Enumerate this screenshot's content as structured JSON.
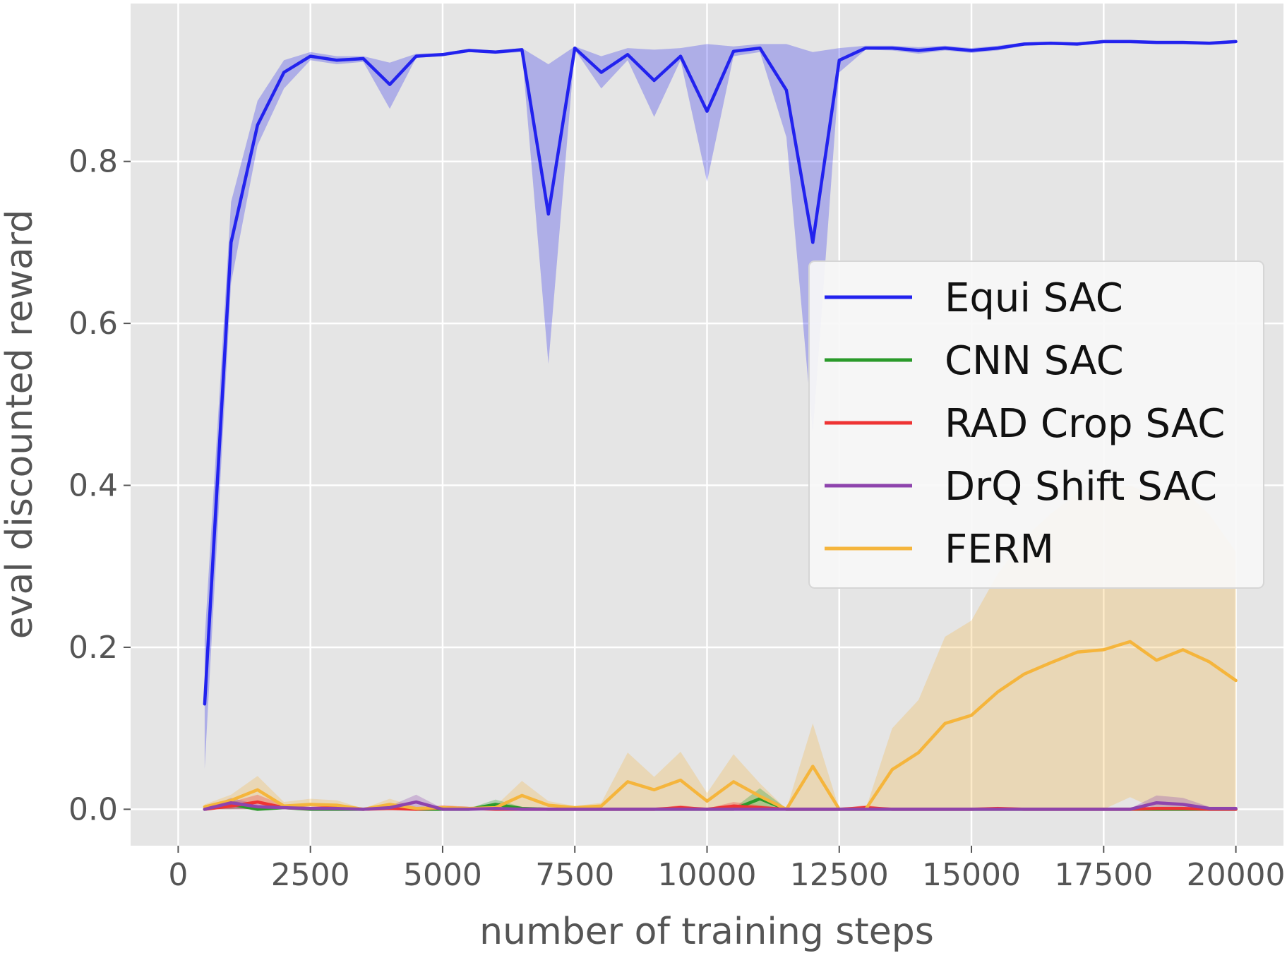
{
  "chart_data": {
    "type": "line",
    "title": "",
    "xlabel": "number of training steps",
    "ylabel": "eval discounted reward",
    "xlim": [
      -900,
      20900
    ],
    "ylim": [
      -0.045,
      0.995
    ],
    "xticks": [
      0,
      2500,
      5000,
      7500,
      10000,
      12500,
      15000,
      17500,
      20000
    ],
    "xtick_labels": [
      "0",
      "2500",
      "5000",
      "7500",
      "10000",
      "12500",
      "15000",
      "17500",
      "20000"
    ],
    "yticks": [
      0.0,
      0.2,
      0.4,
      0.6,
      0.8
    ],
    "ytick_labels": [
      "0.0",
      "0.2",
      "0.4",
      "0.6",
      "0.8"
    ],
    "grid": true,
    "legend_position": "center-right",
    "x": [
      500,
      1000,
      1500,
      2000,
      2500,
      3000,
      3500,
      4000,
      4500,
      5000,
      5500,
      6000,
      6500,
      7000,
      7500,
      8000,
      8500,
      9000,
      9500,
      10000,
      10500,
      11000,
      11500,
      12000,
      12500,
      13000,
      13500,
      14000,
      14500,
      15000,
      15500,
      16000,
      16500,
      17000,
      17500,
      18000,
      18500,
      19000,
      19500,
      20000
    ],
    "series": [
      {
        "name": "Equi SAC",
        "color": "#2222ee",
        "values": [
          0.13,
          0.7,
          0.845,
          0.91,
          0.93,
          0.925,
          0.927,
          0.895,
          0.93,
          0.932,
          0.937,
          0.935,
          0.938,
          0.735,
          0.94,
          0.91,
          0.932,
          0.9,
          0.93,
          0.862,
          0.936,
          0.94,
          0.888,
          0.7,
          0.925,
          0.94,
          0.94,
          0.937,
          0.94,
          0.937,
          0.94,
          0.945,
          0.946,
          0.945,
          0.948,
          0.948,
          0.947,
          0.947,
          0.946,
          0.948
        ],
        "lower": [
          0.05,
          0.65,
          0.82,
          0.89,
          0.925,
          0.92,
          0.923,
          0.865,
          0.928,
          0.93,
          0.935,
          0.933,
          0.935,
          0.55,
          0.938,
          0.89,
          0.925,
          0.855,
          0.925,
          0.775,
          0.93,
          0.935,
          0.83,
          0.465,
          0.91,
          0.938,
          0.937,
          0.933,
          0.937,
          0.934,
          0.937,
          0.943,
          0.944,
          0.943,
          0.946,
          0.946,
          0.945,
          0.945,
          0.944,
          0.946
        ],
        "upper": [
          0.21,
          0.75,
          0.875,
          0.925,
          0.935,
          0.93,
          0.93,
          0.922,
          0.933,
          0.934,
          0.939,
          0.937,
          0.94,
          0.92,
          0.942,
          0.93,
          0.94,
          0.938,
          0.94,
          0.945,
          0.942,
          0.945,
          0.945,
          0.935,
          0.94,
          0.943,
          0.943,
          0.941,
          0.943,
          0.94,
          0.943,
          0.947,
          0.948,
          0.947,
          0.95,
          0.95,
          0.949,
          0.949,
          0.948,
          0.95
        ]
      },
      {
        "name": "CNN SAC",
        "color": "#2a9a2a",
        "values": [
          0.0,
          0.006,
          0.0,
          0.002,
          0.0,
          0.0,
          0.0,
          0.002,
          0.0,
          0.0,
          0.0,
          0.006,
          0.001,
          0.0,
          0.0,
          0.0,
          0.0,
          0.0,
          0.0,
          0.0,
          0.0,
          0.013,
          0.0,
          0.0,
          0.0,
          0.0,
          0.0,
          0.0,
          0.0,
          0.0,
          0.0,
          0.0,
          0.0,
          0.0,
          0.0,
          0.0,
          0.0,
          0.0,
          0.0,
          0.0
        ],
        "lower": [
          0.0,
          0.0,
          0.0,
          0.0,
          0.0,
          0.0,
          0.0,
          0.0,
          0.0,
          0.0,
          0.0,
          0.0,
          0.0,
          0.0,
          0.0,
          0.0,
          0.0,
          0.0,
          0.0,
          0.0,
          0.0,
          0.0,
          0.0,
          0.0,
          0.0,
          0.0,
          0.0,
          0.0,
          0.0,
          0.0,
          0.0,
          0.0,
          0.0,
          0.0,
          0.0,
          0.0,
          0.0,
          0.0,
          0.0,
          0.0
        ],
        "upper": [
          0.001,
          0.012,
          0.002,
          0.005,
          0.001,
          0.001,
          0.001,
          0.005,
          0.001,
          0.001,
          0.001,
          0.012,
          0.003,
          0.001,
          0.001,
          0.001,
          0.001,
          0.001,
          0.001,
          0.001,
          0.001,
          0.026,
          0.001,
          0.001,
          0.001,
          0.001,
          0.001,
          0.001,
          0.001,
          0.001,
          0.001,
          0.001,
          0.001,
          0.001,
          0.001,
          0.001,
          0.001,
          0.001,
          0.001,
          0.001
        ]
      },
      {
        "name": "RAD Crop SAC",
        "color": "#ee3333",
        "values": [
          0.0,
          0.004,
          0.009,
          0.002,
          0.001,
          0.002,
          0.0,
          0.001,
          0.0,
          0.002,
          0.001,
          0.0,
          0.0,
          0.0,
          0.0,
          0.0,
          0.0,
          0.0,
          0.002,
          0.0,
          0.004,
          0.002,
          0.0,
          0.0,
          0.0,
          0.002,
          0.0,
          0.0,
          0.0,
          0.0,
          0.001,
          0.0,
          0.0,
          0.0,
          0.0,
          0.0,
          0.001,
          0.001,
          0.0,
          0.0
        ],
        "lower": [
          0.0,
          0.0,
          0.0,
          0.0,
          0.0,
          0.0,
          0.0,
          0.0,
          0.0,
          0.0,
          0.0,
          0.0,
          0.0,
          0.0,
          0.0,
          0.0,
          0.0,
          0.0,
          0.0,
          0.0,
          0.0,
          0.0,
          0.0,
          0.0,
          0.0,
          0.0,
          0.0,
          0.0,
          0.0,
          0.0,
          0.0,
          0.0,
          0.0,
          0.0,
          0.0,
          0.0,
          0.0,
          0.0,
          0.0,
          0.0
        ],
        "upper": [
          0.002,
          0.009,
          0.018,
          0.005,
          0.003,
          0.005,
          0.001,
          0.003,
          0.001,
          0.005,
          0.003,
          0.001,
          0.001,
          0.001,
          0.001,
          0.001,
          0.001,
          0.001,
          0.005,
          0.001,
          0.009,
          0.005,
          0.001,
          0.001,
          0.001,
          0.005,
          0.001,
          0.001,
          0.001,
          0.001,
          0.003,
          0.001,
          0.001,
          0.001,
          0.001,
          0.001,
          0.003,
          0.003,
          0.001,
          0.001
        ]
      },
      {
        "name": "DrQ Shift SAC",
        "color": "#8e44ad",
        "values": [
          0.0,
          0.008,
          0.003,
          0.002,
          0.001,
          0.001,
          0.0,
          0.002,
          0.009,
          0.0,
          0.0,
          0.001,
          0.0,
          0.0,
          0.0,
          0.0,
          0.0,
          0.0,
          0.0,
          0.0,
          0.0,
          0.0,
          0.0,
          0.0,
          0.0,
          0.0,
          0.0,
          0.0,
          0.0,
          0.0,
          0.0,
          0.0,
          0.0,
          0.0,
          0.0,
          0.0,
          0.008,
          0.006,
          0.001,
          0.001
        ],
        "lower": [
          0.0,
          0.0,
          0.0,
          0.0,
          0.0,
          0.0,
          0.0,
          0.0,
          0.0,
          0.0,
          0.0,
          0.0,
          0.0,
          0.0,
          0.0,
          0.0,
          0.0,
          0.0,
          0.0,
          0.0,
          0.0,
          0.0,
          0.0,
          0.0,
          0.0,
          0.0,
          0.0,
          0.0,
          0.0,
          0.0,
          0.0,
          0.0,
          0.0,
          0.0,
          0.0,
          0.0,
          0.0,
          0.0,
          0.0,
          0.0
        ],
        "upper": [
          0.001,
          0.014,
          0.006,
          0.004,
          0.002,
          0.002,
          0.001,
          0.004,
          0.018,
          0.001,
          0.001,
          0.002,
          0.001,
          0.001,
          0.001,
          0.001,
          0.001,
          0.001,
          0.001,
          0.001,
          0.001,
          0.001,
          0.001,
          0.001,
          0.001,
          0.001,
          0.001,
          0.001,
          0.001,
          0.001,
          0.001,
          0.001,
          0.001,
          0.001,
          0.001,
          0.001,
          0.017,
          0.014,
          0.003,
          0.003
        ]
      },
      {
        "name": "FERM",
        "color": "#f5b53c",
        "values": [
          0.003,
          0.011,
          0.024,
          0.004,
          0.006,
          0.005,
          0.0,
          0.006,
          0.001,
          0.002,
          0.001,
          0.002,
          0.017,
          0.005,
          0.002,
          0.004,
          0.034,
          0.024,
          0.036,
          0.01,
          0.034,
          0.016,
          0.0,
          0.053,
          0.0,
          0.0,
          0.049,
          0.07,
          0.106,
          0.116,
          0.145,
          0.167,
          0.181,
          0.194,
          0.197,
          0.207,
          0.184,
          0.197,
          0.182,
          0.159
        ],
        "lower": [
          0.0,
          0.0,
          0.008,
          0.0,
          0.0,
          0.0,
          0.0,
          0.0,
          0.0,
          0.0,
          0.0,
          0.0,
          0.0,
          0.0,
          0.0,
          0.0,
          0.0,
          0.0,
          0.0,
          0.0,
          0.0,
          0.0,
          0.0,
          0.0,
          0.0,
          0.0,
          0.0,
          0.0,
          0.0,
          0.0,
          0.0,
          0.0,
          0.0,
          0.0,
          0.0,
          0.015,
          0.0,
          0.0,
          0.0,
          0.0
        ],
        "upper": [
          0.006,
          0.018,
          0.041,
          0.009,
          0.013,
          0.011,
          0.001,
          0.013,
          0.003,
          0.004,
          0.003,
          0.004,
          0.035,
          0.01,
          0.004,
          0.008,
          0.07,
          0.04,
          0.071,
          0.02,
          0.068,
          0.032,
          0.0,
          0.106,
          0.0,
          0.0,
          0.1,
          0.135,
          0.213,
          0.233,
          0.291,
          0.335,
          0.365,
          0.39,
          0.395,
          0.4,
          0.385,
          0.395,
          0.364,
          0.318
        ]
      }
    ]
  }
}
